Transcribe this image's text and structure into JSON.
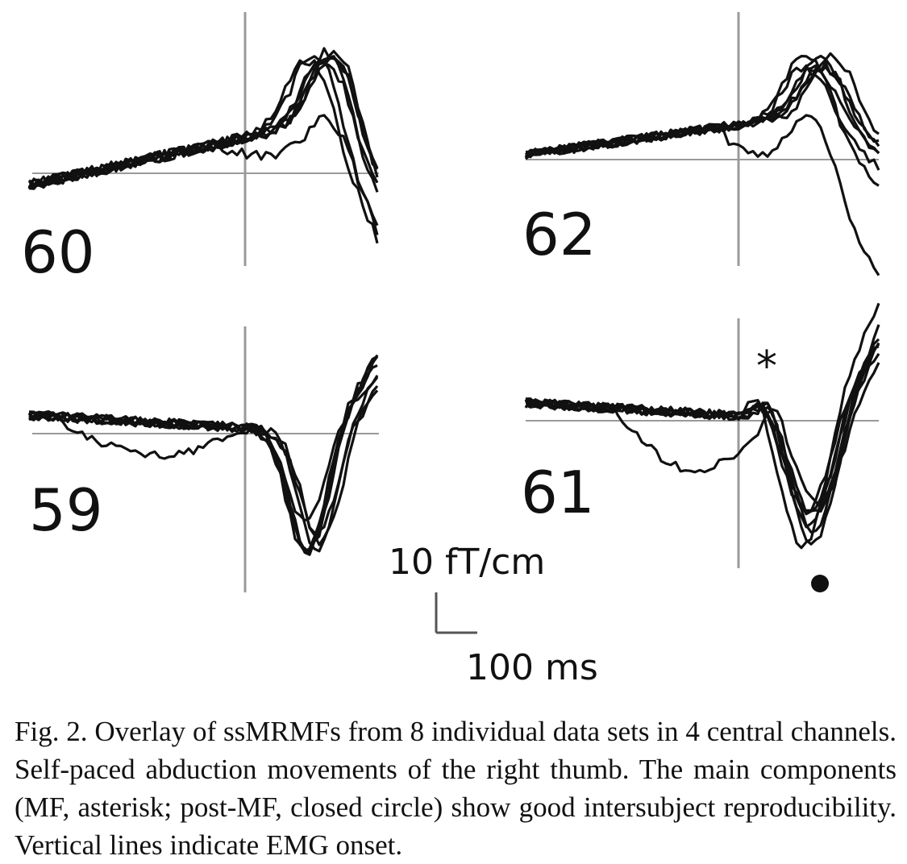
{
  "figure": {
    "panels": [
      {
        "label": "60"
      },
      {
        "label": "62"
      },
      {
        "label": "59"
      },
      {
        "label": "61"
      }
    ],
    "markers": {
      "asterisk": "*"
    },
    "scale_bar": {
      "amplitude_label": "10 fT/cm",
      "time_label": "100 ms"
    }
  },
  "caption": "Fig. 2. Overlay of ssMRMFs from 8 individual data sets in 4 central channels. Self-paced abduction movements of the right thumb. The main components (MF, asterisk; post-MF, closed circle) show good intersubject reproducibility. Vertical lines indicate EMG onset."
}
